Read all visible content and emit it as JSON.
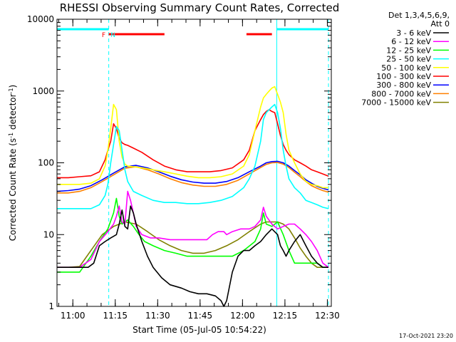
{
  "chart_data": {
    "type": "line",
    "title": "RHESSI Observing Summary Count Rates, Corrected",
    "xlabel": "Start Time (05-Jul-05 10:54:22)",
    "ylabel": "Corrected Count Rate (s⁻¹ detector⁻¹)",
    "ylabel_parts": [
      "Corrected Count Rate (s",
      "-1",
      " detector",
      "-1",
      ")"
    ],
    "y_scale": "log",
    "ylim": [
      1,
      10000
    ],
    "xlim_minutes": [
      0,
      97
    ],
    "x_ticks": [
      {
        "label": "11:00",
        "value": 5.6
      },
      {
        "label": "11:15",
        "value": 20.6
      },
      {
        "label": "11:30",
        "value": 35.6
      },
      {
        "label": "11:45",
        "value": 50.6
      },
      {
        "label": "12:00",
        "value": 65.6
      },
      {
        "label": "12:15",
        "value": 80.6
      },
      {
        "label": "12:30",
        "value": 95.6
      }
    ],
    "y_ticks": [
      {
        "label": "1",
        "value": 1
      },
      {
        "label": "10",
        "value": 10
      },
      {
        "label": "100",
        "value": 100
      },
      {
        "label": "1000",
        "value": 1000
      },
      {
        "label": "10000",
        "value": 10000
      }
    ],
    "legend_header": [
      "Det 1,3,4,5,6,9,",
      "Att 0"
    ],
    "legend_position": "right",
    "series": [
      {
        "name": "3 - 6 keV",
        "color": "#000000",
        "x": [
          0,
          4,
          8,
          11,
          13,
          15,
          17,
          19,
          21,
          22,
          23,
          24,
          25,
          26,
          27,
          28,
          30,
          32,
          34,
          37,
          40,
          44,
          47,
          50,
          53,
          56,
          58,
          59,
          60,
          62,
          64,
          66,
          68,
          70,
          72,
          74,
          76,
          78,
          79,
          80,
          81,
          82,
          84,
          86,
          88,
          90,
          92,
          94,
          96
        ],
        "y": [
          3.5,
          3.5,
          3.5,
          3.5,
          4,
          7,
          8,
          9,
          10,
          14,
          22,
          13,
          12,
          25,
          20,
          14,
          8,
          5,
          3.5,
          2.5,
          2,
          1.8,
          1.6,
          1.5,
          1.5,
          1.4,
          1.2,
          1,
          1.2,
          3,
          5,
          6,
          6,
          7,
          8,
          10,
          12,
          10,
          7,
          6,
          5,
          6,
          8,
          10,
          7,
          5,
          4,
          3.5,
          3.5
        ]
      },
      {
        "name": "6 - 12 keV",
        "color": "#ff00ff",
        "x": [
          0,
          8,
          12,
          15,
          18,
          20,
          21,
          22,
          23,
          24,
          25,
          26,
          27,
          28,
          30,
          33,
          36,
          40,
          45,
          50,
          53,
          55,
          57,
          59,
          60,
          62,
          65,
          68,
          70,
          72,
          73,
          74,
          76,
          78,
          80,
          82,
          84,
          86,
          88,
          90,
          92,
          94,
          96
        ],
        "y": [
          3.5,
          3.5,
          4.5,
          8,
          11,
          14,
          18,
          25,
          15,
          14,
          40,
          30,
          20,
          13,
          10,
          9,
          9,
          8.5,
          8.5,
          8.5,
          8.5,
          10,
          11,
          11,
          10,
          11,
          12,
          12,
          13,
          16,
          24,
          18,
          14,
          12,
          13,
          14,
          14,
          12,
          10,
          8,
          6,
          4,
          3.5
        ]
      },
      {
        "name": "12 - 25 keV",
        "color": "#00ff00",
        "x": [
          0,
          8,
          12,
          15,
          18,
          20,
          21,
          22,
          23,
          25,
          27,
          29,
          31,
          34,
          38,
          42,
          46,
          50,
          54,
          58,
          62,
          66,
          70,
          72,
          73,
          74,
          76,
          78,
          80,
          82,
          84,
          86,
          88,
          90,
          92,
          94,
          96
        ],
        "y": [
          3,
          3,
          5,
          8,
          12,
          20,
          32,
          18,
          14,
          16,
          13,
          10,
          8,
          7,
          6,
          5.5,
          5,
          5,
          5,
          5,
          5,
          6,
          8,
          12,
          20,
          14,
          13,
          15,
          10,
          6,
          4,
          4,
          4,
          4,
          4,
          3.5,
          3.5
        ]
      },
      {
        "name": "25 - 50 keV",
        "color": "#00ffff",
        "x": [
          0,
          4,
          8,
          12,
          15,
          17,
          18,
          19,
          20,
          21,
          22,
          23,
          24,
          25,
          27,
          30,
          34,
          38,
          42,
          46,
          50,
          54,
          58,
          62,
          66,
          68,
          70,
          72,
          73,
          74,
          76,
          77,
          78,
          79,
          80,
          81,
          82,
          84,
          86,
          88,
          90,
          92,
          94,
          96
        ],
        "y": [
          23,
          23,
          23,
          23,
          26,
          35,
          50,
          100,
          180,
          320,
          280,
          150,
          80,
          55,
          40,
          35,
          30,
          28,
          28,
          27,
          27,
          28,
          30,
          34,
          45,
          60,
          90,
          200,
          400,
          500,
          600,
          650,
          500,
          300,
          150,
          90,
          60,
          45,
          38,
          30,
          28,
          26,
          24,
          23
        ]
      },
      {
        "name": "50 - 100 keV",
        "color": "#ffff00",
        "x": [
          0,
          4,
          8,
          12,
          15,
          17,
          18,
          19,
          20,
          21,
          22,
          23,
          24,
          25,
          27,
          30,
          34,
          38,
          42,
          46,
          50,
          54,
          58,
          62,
          66,
          68,
          70,
          72,
          73,
          74,
          75,
          76,
          77,
          78,
          79,
          80,
          81,
          82,
          84,
          86,
          88,
          90,
          92,
          94,
          96
        ],
        "y": [
          50,
          50,
          50,
          52,
          60,
          90,
          150,
          300,
          650,
          550,
          200,
          120,
          95,
          90,
          88,
          85,
          80,
          75,
          70,
          65,
          62,
          62,
          64,
          70,
          90,
          130,
          280,
          600,
          800,
          900,
          1000,
          1100,
          1150,
          900,
          700,
          500,
          250,
          150,
          100,
          70,
          55,
          50,
          48,
          45,
          45
        ]
      },
      {
        "name": "100 - 300 keV",
        "color": "#ff0000",
        "x": [
          0,
          4,
          8,
          12,
          15,
          17,
          18,
          19,
          20,
          21,
          22,
          23,
          24,
          25,
          27,
          30,
          34,
          38,
          42,
          46,
          50,
          54,
          58,
          62,
          66,
          68,
          70,
          72,
          73,
          74,
          75,
          76,
          77,
          78,
          79,
          80,
          81,
          82,
          84,
          86,
          88,
          90,
          92,
          94,
          96
        ],
        "y": [
          62,
          62,
          64,
          66,
          75,
          110,
          150,
          200,
          350,
          300,
          220,
          190,
          180,
          175,
          160,
          140,
          110,
          90,
          80,
          75,
          75,
          75,
          78,
          85,
          110,
          150,
          280,
          400,
          470,
          520,
          550,
          520,
          500,
          350,
          240,
          180,
          150,
          130,
          110,
          100,
          90,
          80,
          75,
          70,
          65
        ]
      },
      {
        "name": "300 - 800 keV",
        "color": "#0000ff",
        "x": [
          0,
          4,
          8,
          12,
          16,
          20,
          24,
          28,
          32,
          36,
          40,
          44,
          48,
          52,
          56,
          60,
          64,
          68,
          72,
          74,
          76,
          78,
          80,
          82,
          84,
          86,
          88,
          90,
          92,
          94,
          96
        ],
        "y": [
          40,
          41,
          43,
          48,
          58,
          72,
          88,
          92,
          85,
          75,
          65,
          58,
          54,
          52,
          52,
          55,
          62,
          75,
          90,
          100,
          104,
          105,
          100,
          90,
          78,
          68,
          58,
          52,
          47,
          44,
          42
        ]
      },
      {
        "name": "800 - 7000 keV",
        "color": "#ff8000",
        "x": [
          0,
          4,
          8,
          12,
          16,
          20,
          24,
          28,
          32,
          36,
          40,
          44,
          48,
          52,
          56,
          60,
          64,
          68,
          72,
          74,
          76,
          78,
          80,
          82,
          84,
          86,
          88,
          90,
          92,
          94,
          96
        ],
        "y": [
          38,
          38,
          40,
          45,
          55,
          68,
          84,
          88,
          80,
          70,
          60,
          53,
          49,
          47,
          47,
          50,
          57,
          70,
          86,
          95,
          100,
          101,
          96,
          86,
          74,
          64,
          55,
          48,
          44,
          41,
          39
        ]
      },
      {
        "name": "7000 - 15000 keV",
        "color": "#808000",
        "x": [
          0,
          4,
          8,
          12,
          16,
          20,
          24,
          28,
          32,
          36,
          40,
          44,
          48,
          52,
          56,
          60,
          64,
          68,
          72,
          74,
          76,
          78,
          80,
          82,
          84,
          86,
          88,
          90,
          92,
          94,
          96
        ],
        "y": [
          3.5,
          3.5,
          3.6,
          6,
          10,
          13,
          15,
          14,
          11,
          8.5,
          7,
          6,
          5.5,
          5.5,
          6,
          7,
          8.5,
          11,
          14,
          15,
          15,
          15,
          14,
          12,
          9,
          6.5,
          5,
          4,
          3.5,
          3.5,
          3.5
        ]
      }
    ],
    "attenuator_segments": [
      [
        0,
        18.3
      ],
      [
        77.7,
        96
      ]
    ],
    "flare_segments": [
      [
        18.3,
        38
      ],
      [
        67,
        76
      ]
    ],
    "flag_labels": [
      {
        "label": "F",
        "x": 16.5
      },
      {
        "label": "N",
        "x": 19.8
      }
    ],
    "dashed_vlines": [
      18.3,
      96
    ],
    "solid_vlines": [
      77.7
    ]
  },
  "timestamp": "17-Oct-2021 23:20"
}
